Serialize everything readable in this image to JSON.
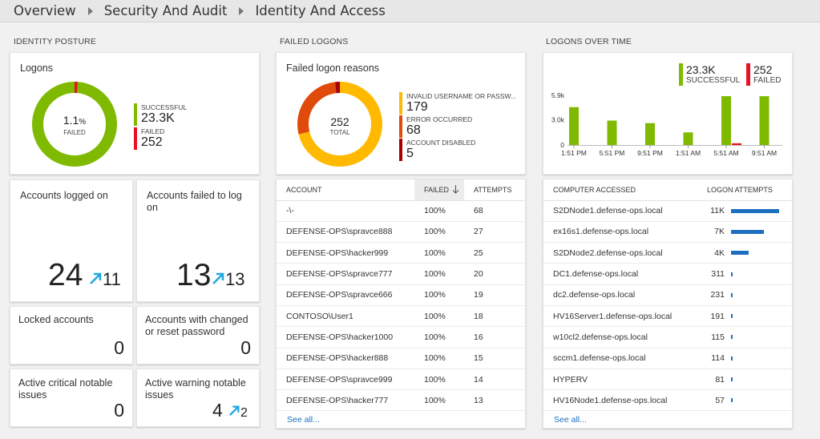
{
  "breadcrumb": [
    "Overview",
    "Security And Audit",
    "Identity And Access"
  ],
  "sections": {
    "identity_posture": "IDENTITY POSTURE",
    "failed_logons": "FAILED LOGONS",
    "logons_over_time": "LOGONS OVER TIME"
  },
  "logons": {
    "title": "Logons",
    "center_value": "1.1",
    "center_unit": "%",
    "center_label": "FAILED",
    "colors": {
      "successful": "#7fba00",
      "failed": "#e81123"
    },
    "legend": [
      {
        "label": "SUCCESSFUL",
        "value": "23.3K",
        "color": "#7fba00"
      },
      {
        "label": "FAILED",
        "value": "252",
        "color": "#e81123"
      }
    ],
    "failed_fraction": 0.011
  },
  "failed_reasons": {
    "title": "Failed logon reasons",
    "center_value": "252",
    "center_label": "TOTAL",
    "legend": [
      {
        "label": "INVALID USERNAME OR PASSW...",
        "value": "179",
        "color": "#ffb900"
      },
      {
        "label": "ERROR OCCURRED",
        "value": "68",
        "color": "#e04a0a"
      },
      {
        "label": "ACCOUNT DISABLED",
        "value": "5",
        "color": "#a80000"
      }
    ]
  },
  "tiles": {
    "accounts_logged_on": {
      "title": "Accounts logged on",
      "value": "24",
      "trend": "11"
    },
    "accounts_failed": {
      "title": "Accounts failed to log on",
      "value": "13",
      "trend": "13"
    },
    "locked": {
      "title": "Locked accounts",
      "value": "0"
    },
    "changed_pw": {
      "title": "Accounts with changed or reset password",
      "value": "0"
    },
    "critical": {
      "title": "Active critical notable issues",
      "value": "0"
    },
    "warning": {
      "title": "Active warning notable issues",
      "value": "4",
      "trend": "2"
    }
  },
  "accounts_table": {
    "headers": [
      "ACCOUNT",
      "FAILED",
      "ATTEMPTS"
    ],
    "rows": [
      [
        "-\\-",
        "100%",
        "68"
      ],
      [
        "DEFENSE-OPS\\spravce888",
        "100%",
        "27"
      ],
      [
        "DEFENSE-OPS\\hacker999",
        "100%",
        "25"
      ],
      [
        "DEFENSE-OPS\\spravce777",
        "100%",
        "20"
      ],
      [
        "DEFENSE-OPS\\spravce666",
        "100%",
        "19"
      ],
      [
        "CONTOSO\\User1",
        "100%",
        "18"
      ],
      [
        "DEFENSE-OPS\\hacker1000",
        "100%",
        "16"
      ],
      [
        "DEFENSE-OPS\\hacker888",
        "100%",
        "15"
      ],
      [
        "DEFENSE-OPS\\spravce999",
        "100%",
        "14"
      ],
      [
        "DEFENSE-OPS\\hacker777",
        "100%",
        "13"
      ]
    ],
    "see_all": "See all..."
  },
  "logons_chart": {
    "legend": [
      {
        "label": "SUCCESSFUL",
        "value": "23.3K",
        "color": "#7fba00"
      },
      {
        "label": "FAILED",
        "value": "252",
        "color": "#e81123"
      }
    ]
  },
  "chart_data": {
    "type": "bar",
    "categories": [
      "1:51 PM",
      "5:51 PM",
      "9:51 PM",
      "1:51 AM",
      "5:51 AM",
      "9:51 AM"
    ],
    "series": [
      {
        "name": "SUCCESSFUL",
        "values": [
          4.5,
          2.9,
          2.6,
          1.5,
          5.8,
          5.8
        ],
        "color": "#7fba00"
      },
      {
        "name": "FAILED",
        "values": [
          0,
          0,
          0,
          0,
          0.2,
          0
        ],
        "color": "#e81123"
      }
    ],
    "yticks": [
      "5.9k",
      "3.0k",
      "0"
    ],
    "ylim": [
      0,
      5.9
    ]
  },
  "computers_table": {
    "headers": [
      "COMPUTER ACCESSED",
      "LOGON ATTEMPTS"
    ],
    "rows": [
      {
        "name": "S2DNode1.defense-ops.local",
        "value": "11K",
        "fraction": 1.0
      },
      {
        "name": "ex16s1.defense-ops.local",
        "value": "7K",
        "fraction": 0.68
      },
      {
        "name": "S2DNode2.defense-ops.local",
        "value": "4K",
        "fraction": 0.37
      },
      {
        "name": "DC1.defense-ops.local",
        "value": "311",
        "fraction": 0.03
      },
      {
        "name": "dc2.defense-ops.local",
        "value": "231",
        "fraction": 0.021
      },
      {
        "name": "HV16Server1.defense-ops.local",
        "value": "191",
        "fraction": 0.017
      },
      {
        "name": "w10cl2.defense-ops.local",
        "value": "115",
        "fraction": 0.01
      },
      {
        "name": "sccm1.defense-ops.local",
        "value": "114",
        "fraction": 0.01
      },
      {
        "name": "HYPERV",
        "value": "81",
        "fraction": 0.007
      },
      {
        "name": "HV16Node1.defense-ops.local",
        "value": "57",
        "fraction": 0.005
      }
    ],
    "bar_color": "#1e6fc0",
    "see_all": "See all..."
  }
}
